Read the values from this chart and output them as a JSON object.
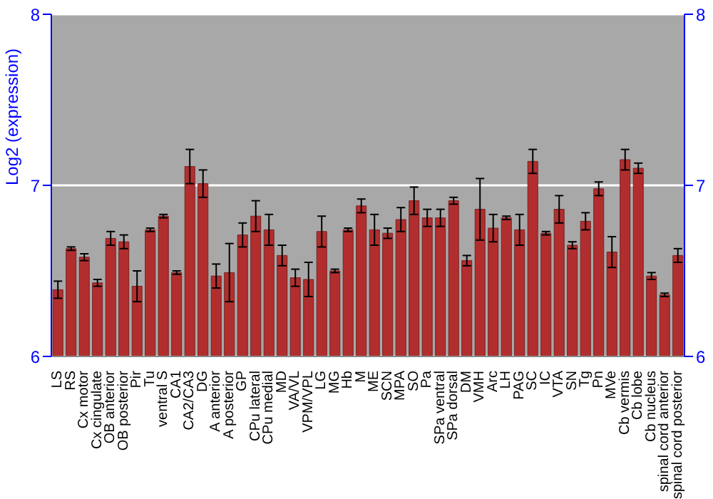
{
  "chart_data": {
    "type": "bar",
    "ylabel": "Log2 (expression)",
    "categories": [
      "LS",
      "RS",
      "Cx motor",
      "Cx cingulate",
      "OB anterior",
      "OB posterior",
      "Pir",
      "Tu",
      "ventral S",
      "CA1",
      "CA2/CA3",
      "DG",
      "A anterior",
      "A posterior",
      "GP",
      "CPu lateral",
      "CPu medial",
      "MD",
      "VA/VL",
      "VPM/VPL",
      "LG",
      "MG",
      "Hb",
      "M",
      "ME",
      "SCN",
      "MPA",
      "SO",
      "Pa",
      "SPa ventral",
      "SPa dorsal",
      "DM",
      "VMH",
      "Arc",
      "LH",
      "PAG",
      "SC",
      "IC",
      "VTA",
      "SN",
      "Tg",
      "Pn",
      "MVe",
      "Cb vermis",
      "Cb lobe",
      "Cb nucleus",
      "spinal cord anterior",
      "spinal cord posterior"
    ],
    "values": [
      6.39,
      6.63,
      6.58,
      6.43,
      6.69,
      6.67,
      6.41,
      6.74,
      6.82,
      6.49,
      7.11,
      7.01,
      6.47,
      6.49,
      6.71,
      6.82,
      6.74,
      6.59,
      6.46,
      6.45,
      6.73,
      6.5,
      6.74,
      6.88,
      6.74,
      6.72,
      6.8,
      6.91,
      6.81,
      6.81,
      6.91,
      6.56,
      6.86,
      6.75,
      6.81,
      6.74,
      7.14,
      6.72,
      6.86,
      6.65,
      6.79,
      6.98,
      6.61,
      7.15,
      7.1,
      6.47,
      6.36,
      6.59
    ],
    "errors": [
      0.05,
      0.01,
      0.02,
      0.02,
      0.04,
      0.04,
      0.09,
      0.01,
      0.01,
      0.01,
      0.1,
      0.08,
      0.07,
      0.17,
      0.07,
      0.09,
      0.09,
      0.06,
      0.05,
      0.1,
      0.09,
      0.01,
      0.01,
      0.04,
      0.09,
      0.03,
      0.07,
      0.08,
      0.05,
      0.05,
      0.02,
      0.03,
      0.18,
      0.08,
      0.01,
      0.09,
      0.07,
      0.01,
      0.08,
      0.02,
      0.05,
      0.04,
      0.09,
      0.06,
      0.03,
      0.02,
      0.01,
      0.04
    ],
    "color": "#b22e2e",
    "ylim": [
      6,
      8
    ],
    "yticks": [
      6,
      7,
      8
    ],
    "y2lim": [
      6,
      8
    ],
    "y2ticks": [
      6,
      7,
      8
    ],
    "grid": "y"
  }
}
